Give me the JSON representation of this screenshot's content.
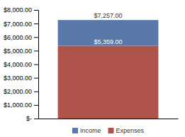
{
  "chart_data": {
    "type": "bar",
    "stacked": true,
    "categories": [
      null
    ],
    "series": [
      {
        "name": "Expenses",
        "color": "#b0534a",
        "values": [
          5359.0
        ]
      },
      {
        "name": "Income",
        "color": "#5878a8",
        "values": [
          1898.0
        ]
      }
    ],
    "annotations": [
      {
        "text": "$7,257.00",
        "value": 7257.0
      },
      {
        "text": "$5,359.00",
        "value": 5359.0
      }
    ],
    "ylim": [
      0,
      8000
    ],
    "yticks": [
      {
        "value": 0,
        "label": "$-"
      },
      {
        "value": 1000,
        "label": "$1,000.00"
      },
      {
        "value": 2000,
        "label": "$2,000.00"
      },
      {
        "value": 3000,
        "label": "$3,000.00"
      },
      {
        "value": 4000,
        "label": "$4,000.00"
      },
      {
        "value": 5000,
        "label": "$5,000.00"
      },
      {
        "value": 6000,
        "label": "$6,000.00"
      },
      {
        "value": 7000,
        "label": "$7,000.00"
      },
      {
        "value": 8000,
        "label": "$8,000.00"
      }
    ],
    "grid": false,
    "legend": "bottom",
    "tick_labels": "y"
  }
}
